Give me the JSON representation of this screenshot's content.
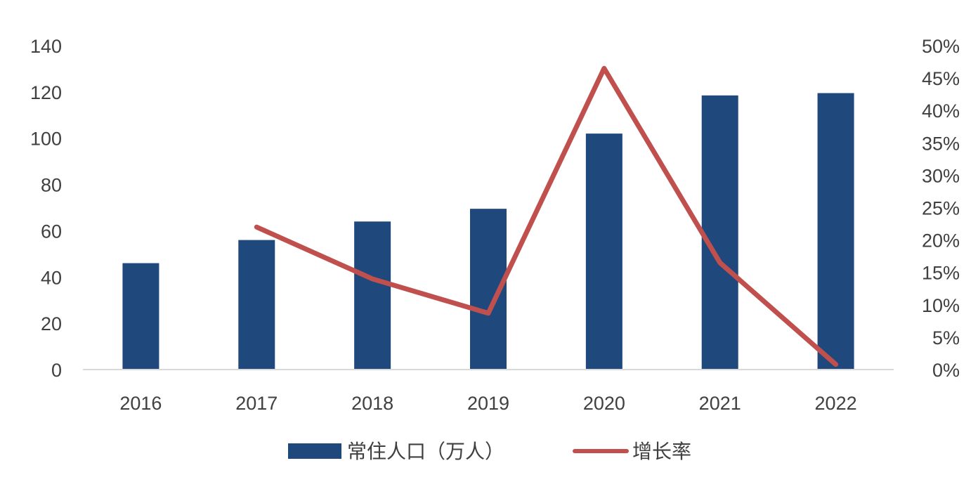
{
  "chart_data": {
    "type": "bar+line",
    "categories": [
      "2016",
      "2017",
      "2018",
      "2019",
      "2020",
      "2021",
      "2022"
    ],
    "series": [
      {
        "name": "常住人口（万人）",
        "type": "bar",
        "axis": "left",
        "color": "#1f497d",
        "values": [
          46,
          56,
          64,
          69.5,
          102,
          118.5,
          119.5
        ]
      },
      {
        "name": "增长率",
        "type": "line",
        "axis": "right",
        "color": "#c0504d",
        "values": [
          null,
          22,
          14,
          8.7,
          46.5,
          16.5,
          0.8
        ]
      }
    ],
    "y_left": {
      "min": 0,
      "max": 140,
      "step": 20,
      "ticks": [
        "0",
        "20",
        "40",
        "60",
        "80",
        "100",
        "120",
        "140"
      ]
    },
    "y_right": {
      "min": 0,
      "max": 50,
      "step": 5,
      "ticks": [
        "0%",
        "5%",
        "10%",
        "15%",
        "20%",
        "25%",
        "30%",
        "35%",
        "40%",
        "45%",
        "50%"
      ]
    },
    "grid": false,
    "legend_position": "bottom"
  }
}
